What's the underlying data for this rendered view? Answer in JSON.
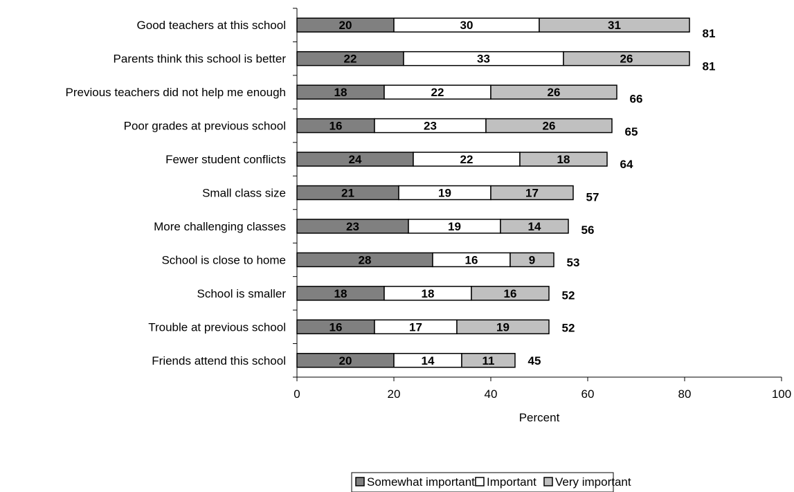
{
  "chart_data": {
    "type": "bar",
    "orientation": "horizontal",
    "stacked": true,
    "categories": [
      "Good teachers at this school",
      "Parents think this school is better",
      "Previous teachers did not help me enough",
      "Poor grades at previous school",
      "Fewer student conflicts",
      "Small class size",
      "More challenging classes",
      "School is close to home",
      "School is smaller",
      "Trouble at previous school",
      "Friends attend this school"
    ],
    "series": [
      {
        "name": "Somewhat important",
        "color": "#808080",
        "values": [
          20,
          22,
          18,
          16,
          24,
          21,
          23,
          28,
          18,
          16,
          20
        ]
      },
      {
        "name": "Important",
        "color": "#ffffff",
        "values": [
          30,
          33,
          22,
          23,
          22,
          19,
          19,
          16,
          18,
          17,
          14
        ]
      },
      {
        "name": "Very important",
        "color": "#c0c0c0",
        "values": [
          31,
          26,
          26,
          26,
          18,
          17,
          14,
          9,
          16,
          19,
          11
        ]
      }
    ],
    "totals": [
      81,
      81,
      66,
      65,
      64,
      57,
      56,
      53,
      52,
      52,
      45
    ],
    "xlabel": "Percent",
    "ylabel": "",
    "xlim": [
      0,
      100
    ],
    "xticks": [
      0,
      20,
      40,
      60,
      80,
      100
    ],
    "grid": false,
    "legend_position": "bottom"
  }
}
